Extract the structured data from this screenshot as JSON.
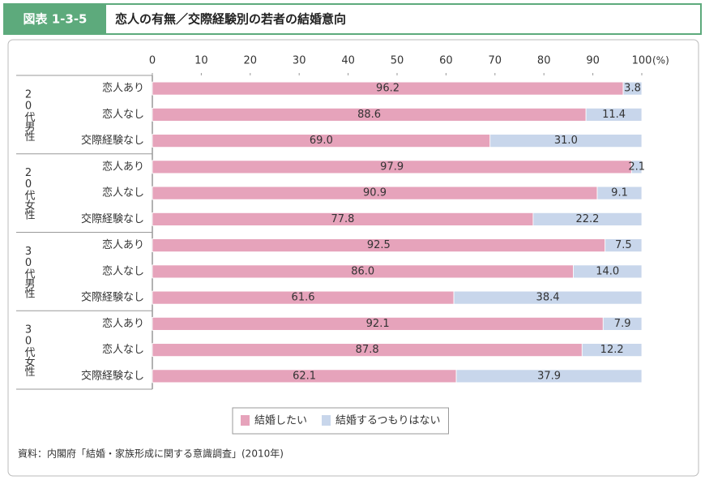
{
  "chart_data": {
    "type": "bar",
    "orientation": "horizontal",
    "stacked": true,
    "figure_label": "図表 1-3-5",
    "title": "恋人の有無／交際経験別の若者の結婚意向",
    "x_unit": "(%)",
    "groups": [
      "20代男性",
      "20代女性",
      "30代男性",
      "30代女性"
    ],
    "categories": [
      "恋人あり",
      "恋人なし",
      "交際経験なし",
      "恋人あり",
      "恋人なし",
      "交際経験なし",
      "恋人あり",
      "恋人なし",
      "交際経験なし",
      "恋人あり",
      "恋人なし",
      "交際経験なし"
    ],
    "series": [
      {
        "name": "結婚したい",
        "color": "#e6a3bb",
        "values": [
          96.2,
          88.6,
          69.0,
          97.9,
          90.9,
          77.8,
          92.5,
          86.0,
          61.6,
          92.1,
          87.8,
          62.1
        ],
        "value_labels": [
          "96.2",
          "88.6",
          "69.0",
          "97.9",
          "90.9",
          "77.8",
          "92.5",
          "86.0",
          "61.6",
          "92.1",
          "87.8",
          "62.1"
        ]
      },
      {
        "name": "結婚するつもりはない",
        "color": "#c8d6eb",
        "values": [
          3.8,
          11.4,
          31.0,
          2.1,
          9.1,
          22.2,
          7.5,
          14.0,
          38.4,
          7.9,
          12.2,
          37.9
        ],
        "value_labels": [
          "3.8",
          "11.4",
          "31.0",
          "2.1",
          "9.1",
          "22.2",
          "7.5",
          "14.0",
          "38.4",
          "7.9",
          "12.2",
          "37.9"
        ]
      }
    ],
    "xlim": [
      0,
      100
    ],
    "xticks": [
      0,
      10,
      20,
      30,
      40,
      50,
      60,
      70,
      80,
      90,
      100
    ],
    "source": "資料：内閣府「結婚・家族形成に関する意識調査」(2010年)"
  }
}
